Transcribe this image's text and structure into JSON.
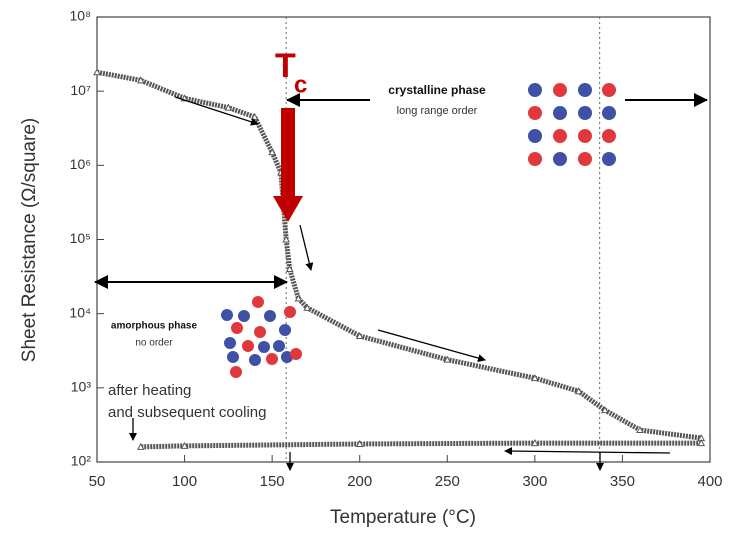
{
  "chart_data": {
    "type": "line",
    "x_label": "Temperature (°C)",
    "y_label": "Sheet Resistance (Ω/square)",
    "log_y": true,
    "xlim": [
      50,
      400
    ],
    "ylim": [
      100,
      100000000
    ],
    "xticks": [
      50,
      100,
      150,
      200,
      250,
      300,
      350,
      400
    ],
    "yticks": [
      {
        "value": 100,
        "label": "10²"
      },
      {
        "value": 1000,
        "label": "10³"
      },
      {
        "value": 10000,
        "label": "10⁴"
      },
      {
        "value": 100000,
        "label": "10⁵"
      },
      {
        "value": 1000000,
        "label": "10⁶"
      },
      {
        "value": 10000000,
        "label": "10⁷"
      },
      {
        "value": 100000000,
        "label": "10⁸"
      }
    ],
    "series": [
      {
        "color": "#555555",
        "x": [
          50,
          75,
          100,
          125,
          140,
          150,
          155,
          158,
          160,
          165,
          170,
          200,
          250,
          300,
          325,
          340,
          360,
          395
        ],
        "values": [
          18000000,
          14000000,
          8000000,
          6000000,
          4500000,
          1500000,
          800000,
          100000,
          40000,
          16000,
          12000,
          5000,
          2400,
          1350,
          900,
          500,
          270,
          210
        ]
      },
      {
        "color": "#555555",
        "x": [
          395,
          300,
          200,
          100,
          75
        ],
        "values": [
          180,
          180,
          175,
          165,
          160
        ]
      }
    ],
    "vlines": [
      158,
      337
    ],
    "annotations": {
      "tc": {
        "main": "T",
        "sub": "c"
      },
      "crystalline": "crystalline phase",
      "crystalline_sub": "long range order",
      "amorphous": "amorphous phase",
      "amorphous_sub": "no order",
      "cooling_1": "after heating",
      "cooling_2": "and subsequent cooling"
    }
  }
}
